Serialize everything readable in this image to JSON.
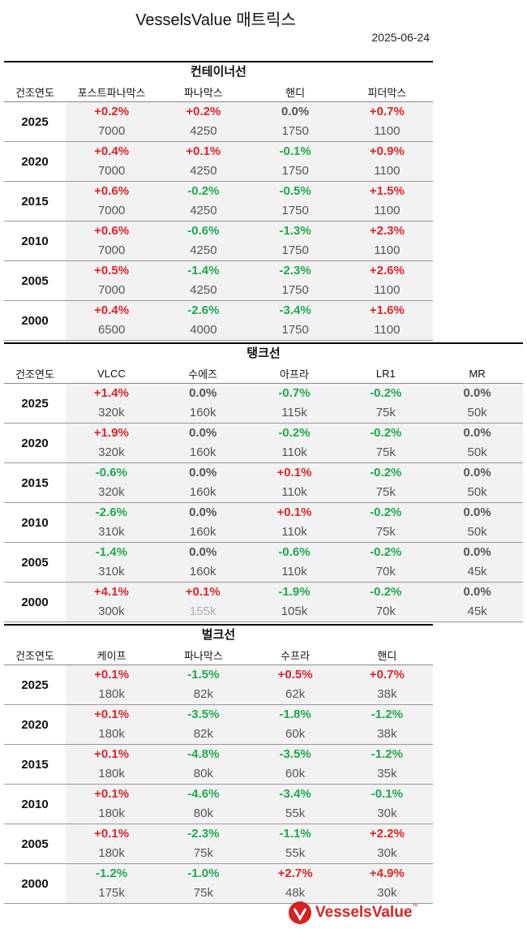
{
  "title": "VesselsValue 매트릭스",
  "date": "2025-06-24",
  "year_label": "건조연도",
  "logo": {
    "text": "VesselsValue",
    "tm": "™",
    "color": "#d22222"
  },
  "colors": {
    "positive": "#e0232a",
    "negative": "#1fa84f",
    "zero": "#555555"
  },
  "sections": [
    {
      "title": "컨테이너선",
      "columns": [
        "포스트파나막스",
        "파나막스",
        "핸디",
        "피더막스"
      ],
      "rows": [
        {
          "year": "2025",
          "cells": [
            {
              "pct": "+0.2%",
              "val": "7000"
            },
            {
              "pct": "+0.2%",
              "val": "4250"
            },
            {
              "pct": "0.0%",
              "val": "1750"
            },
            {
              "pct": "+0.7%",
              "val": "1100"
            }
          ]
        },
        {
          "year": "2020",
          "cells": [
            {
              "pct": "+0.4%",
              "val": "7000"
            },
            {
              "pct": "+0.1%",
              "val": "4250"
            },
            {
              "pct": "-0.1%",
              "val": "1750"
            },
            {
              "pct": "+0.9%",
              "val": "1100"
            }
          ]
        },
        {
          "year": "2015",
          "cells": [
            {
              "pct": "+0.6%",
              "val": "7000"
            },
            {
              "pct": "-0.2%",
              "val": "4250"
            },
            {
              "pct": "-0.5%",
              "val": "1750"
            },
            {
              "pct": "+1.5%",
              "val": "1100"
            }
          ]
        },
        {
          "year": "2010",
          "cells": [
            {
              "pct": "+0.6%",
              "val": "7000"
            },
            {
              "pct": "-0.6%",
              "val": "4250"
            },
            {
              "pct": "-1.3%",
              "val": "1750"
            },
            {
              "pct": "+2.3%",
              "val": "1100"
            }
          ]
        },
        {
          "year": "2005",
          "cells": [
            {
              "pct": "+0.5%",
              "val": "7000"
            },
            {
              "pct": "-1.4%",
              "val": "4250"
            },
            {
              "pct": "-2.3%",
              "val": "1750"
            },
            {
              "pct": "+2.6%",
              "val": "1100"
            }
          ]
        },
        {
          "year": "2000",
          "cells": [
            {
              "pct": "+0.4%",
              "val": "6500"
            },
            {
              "pct": "-2.6%",
              "val": "4000"
            },
            {
              "pct": "-3.4%",
              "val": "1750"
            },
            {
              "pct": "+1.6%",
              "val": "1100"
            }
          ]
        }
      ]
    },
    {
      "title": "탱크선",
      "columns": [
        "VLCC",
        "수에즈",
        "아프라",
        "LR1",
        "MR"
      ],
      "rows": [
        {
          "year": "2025",
          "cells": [
            {
              "pct": "+1.4%",
              "val": "320k"
            },
            {
              "pct": "0.0%",
              "val": "160k"
            },
            {
              "pct": "-0.7%",
              "val": "115k"
            },
            {
              "pct": "-0.2%",
              "val": "75k"
            },
            {
              "pct": "0.0%",
              "val": "50k"
            }
          ]
        },
        {
          "year": "2020",
          "cells": [
            {
              "pct": "+1.9%",
              "val": "320k"
            },
            {
              "pct": "0.0%",
              "val": "160k"
            },
            {
              "pct": "-0.2%",
              "val": "110k"
            },
            {
              "pct": "-0.2%",
              "val": "75k"
            },
            {
              "pct": "0.0%",
              "val": "50k"
            }
          ]
        },
        {
          "year": "2015",
          "cells": [
            {
              "pct": "-0.6%",
              "val": "320k"
            },
            {
              "pct": "0.0%",
              "val": "160k"
            },
            {
              "pct": "+0.1%",
              "val": "110k"
            },
            {
              "pct": "-0.2%",
              "val": "75k"
            },
            {
              "pct": "0.0%",
              "val": "50k"
            }
          ]
        },
        {
          "year": "2010",
          "cells": [
            {
              "pct": "-2.6%",
              "val": "310k"
            },
            {
              "pct": "0.0%",
              "val": "160k"
            },
            {
              "pct": "+0.1%",
              "val": "110k"
            },
            {
              "pct": "-0.2%",
              "val": "75k"
            },
            {
              "pct": "0.0%",
              "val": "50k"
            }
          ]
        },
        {
          "year": "2005",
          "cells": [
            {
              "pct": "-1.4%",
              "val": "310k"
            },
            {
              "pct": "0.0%",
              "val": "160k"
            },
            {
              "pct": "-0.6%",
              "val": "110k"
            },
            {
              "pct": "-0.2%",
              "val": "70k"
            },
            {
              "pct": "0.0%",
              "val": "45k"
            }
          ]
        },
        {
          "year": "2000",
          "cells": [
            {
              "pct": "+4.1%",
              "val": "300k"
            },
            {
              "pct": "+0.1%",
              "val": "155k",
              "faded": true
            },
            {
              "pct": "-1.9%",
              "val": "105k"
            },
            {
              "pct": "-0.2%",
              "val": "70k"
            },
            {
              "pct": "0.0%",
              "val": "45k"
            }
          ]
        }
      ]
    },
    {
      "title": "벌크선",
      "columns": [
        "케이프",
        "파나막스",
        "수프라",
        "핸디"
      ],
      "rows": [
        {
          "year": "2025",
          "cells": [
            {
              "pct": "+0.1%",
              "val": "180k"
            },
            {
              "pct": "-1.5%",
              "val": "82k"
            },
            {
              "pct": "+0.5%",
              "val": "62k"
            },
            {
              "pct": "+0.7%",
              "val": "38k"
            }
          ]
        },
        {
          "year": "2020",
          "cells": [
            {
              "pct": "+0.1%",
              "val": "180k"
            },
            {
              "pct": "-3.5%",
              "val": "82k"
            },
            {
              "pct": "-1.8%",
              "val": "60k"
            },
            {
              "pct": "-1.2%",
              "val": "38k"
            }
          ]
        },
        {
          "year": "2015",
          "cells": [
            {
              "pct": "+0.1%",
              "val": "180k"
            },
            {
              "pct": "-4.8%",
              "val": "80k"
            },
            {
              "pct": "-3.5%",
              "val": "60k"
            },
            {
              "pct": "-1.2%",
              "val": "35k"
            }
          ]
        },
        {
          "year": "2010",
          "cells": [
            {
              "pct": "+0.1%",
              "val": "180k"
            },
            {
              "pct": "-4.6%",
              "val": "80k"
            },
            {
              "pct": "-3.4%",
              "val": "55k"
            },
            {
              "pct": "-0.1%",
              "val": "30k"
            }
          ]
        },
        {
          "year": "2005",
          "cells": [
            {
              "pct": "+0.1%",
              "val": "180k"
            },
            {
              "pct": "-2.3%",
              "val": "75k"
            },
            {
              "pct": "-1.1%",
              "val": "55k"
            },
            {
              "pct": "+2.2%",
              "val": "30k"
            }
          ]
        },
        {
          "year": "2000",
          "cells": [
            {
              "pct": "-1.2%",
              "val": "175k"
            },
            {
              "pct": "-1.0%",
              "val": "75k"
            },
            {
              "pct": "+2.7%",
              "val": "48k"
            },
            {
              "pct": "+4.9%",
              "val": "30k"
            }
          ]
        }
      ]
    }
  ]
}
